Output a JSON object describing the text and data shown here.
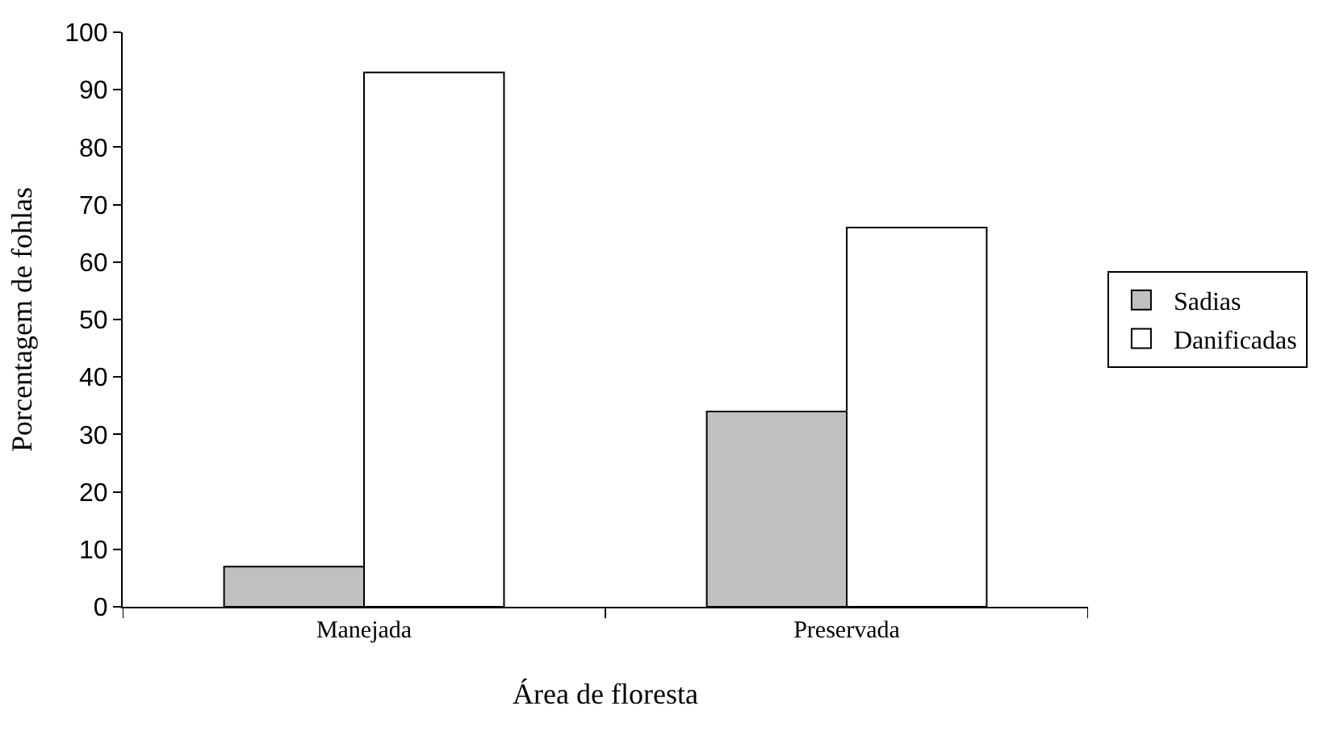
{
  "chart_data": {
    "type": "bar",
    "xlabel": "Área de floresta",
    "ylabel": "Porcentagem de fohlas",
    "categories": [
      "Manejada",
      "Preservada"
    ],
    "series": [
      {
        "name": "Sadias",
        "color": "#c0c0c0",
        "values": [
          7,
          34
        ]
      },
      {
        "name": "Danificadas",
        "color": "#ffffff",
        "values": [
          93,
          66
        ]
      }
    ],
    "ylim": [
      0,
      100
    ],
    "yticks": [
      0,
      10,
      20,
      30,
      40,
      50,
      60,
      70,
      80,
      90,
      100
    ],
    "legend": "right"
  }
}
